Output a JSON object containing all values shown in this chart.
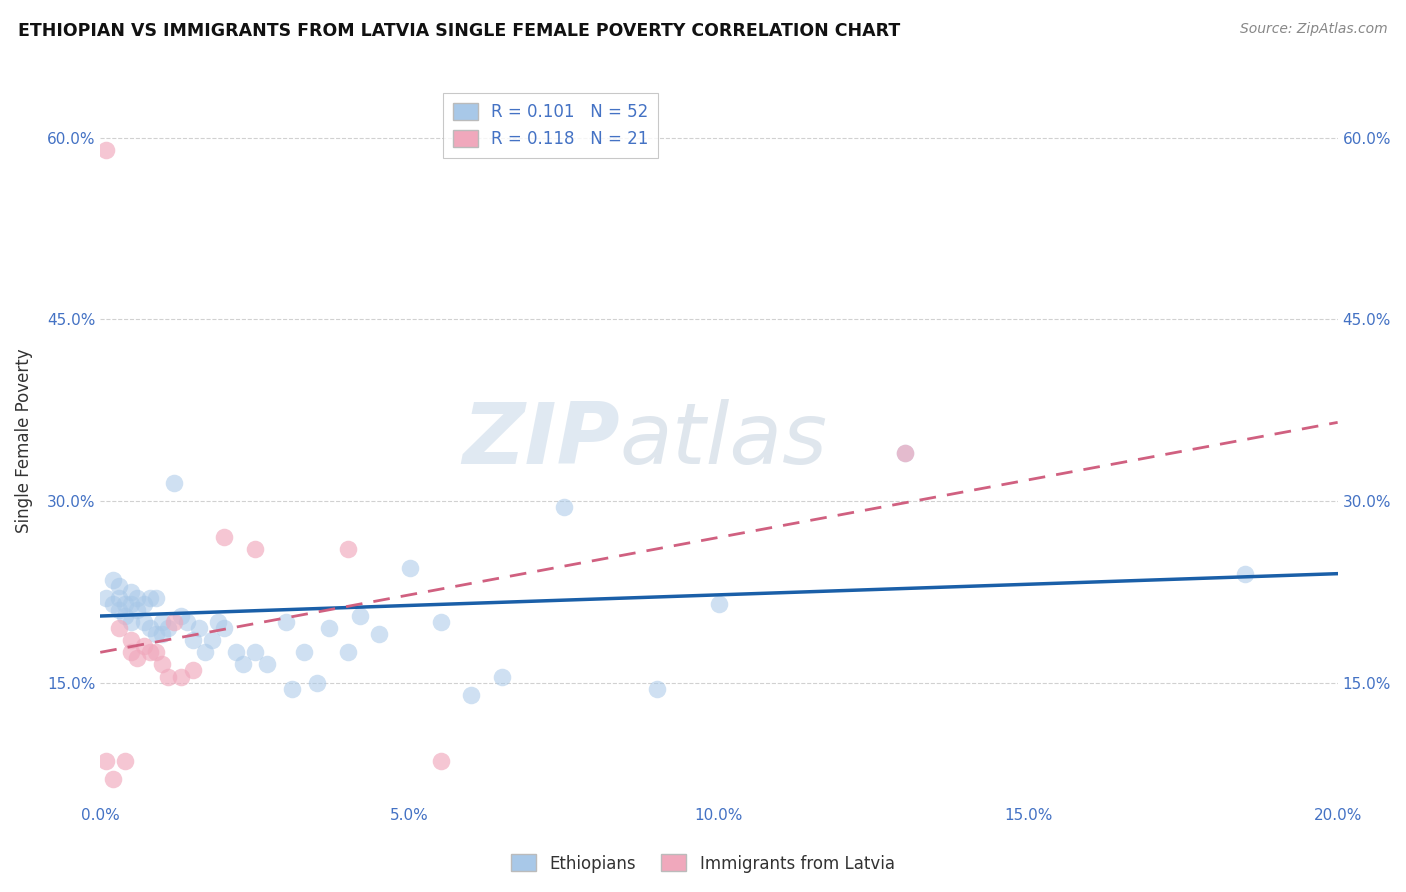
{
  "title": "ETHIOPIAN VS IMMIGRANTS FROM LATVIA SINGLE FEMALE POVERTY CORRELATION CHART",
  "source": "Source: ZipAtlas.com",
  "ylabel": "Single Female Poverty",
  "xlim": [
    0.0,
    0.2
  ],
  "ylim": [
    0.05,
    0.65
  ],
  "xticks": [
    0.0,
    0.05,
    0.1,
    0.15,
    0.2
  ],
  "yticks": [
    0.15,
    0.3,
    0.45,
    0.6
  ],
  "ytick_labels": [
    "15.0%",
    "30.0%",
    "45.0%",
    "60.0%"
  ],
  "xtick_labels": [
    "0.0%",
    "5.0%",
    "10.0%",
    "15.0%",
    "20.0%"
  ],
  "watermark_zip": "ZIP",
  "watermark_atlas": "atlas",
  "legend_r1": "R = 0.101   N = 52",
  "legend_r2": "R = 0.118   N = 21",
  "legend_label1": "Ethiopians",
  "legend_label2": "Immigrants from Latvia",
  "blue_color": "#a8c8e8",
  "pink_color": "#f0a8bc",
  "blue_line_color": "#1a5fa8",
  "pink_line_color": "#d06080",
  "ethiopians_x": [
    0.001,
    0.002,
    0.002,
    0.003,
    0.003,
    0.003,
    0.004,
    0.004,
    0.005,
    0.005,
    0.005,
    0.006,
    0.006,
    0.007,
    0.007,
    0.008,
    0.008,
    0.009,
    0.009,
    0.01,
    0.01,
    0.011,
    0.012,
    0.013,
    0.014,
    0.015,
    0.016,
    0.017,
    0.018,
    0.019,
    0.02,
    0.022,
    0.023,
    0.025,
    0.027,
    0.03,
    0.031,
    0.033,
    0.035,
    0.037,
    0.04,
    0.042,
    0.045,
    0.05,
    0.055,
    0.06,
    0.065,
    0.075,
    0.09,
    0.1,
    0.13,
    0.185
  ],
  "ethiopians_y": [
    0.22,
    0.235,
    0.215,
    0.23,
    0.22,
    0.21,
    0.215,
    0.205,
    0.225,
    0.215,
    0.2,
    0.21,
    0.22,
    0.215,
    0.2,
    0.22,
    0.195,
    0.22,
    0.19,
    0.2,
    0.19,
    0.195,
    0.315,
    0.205,
    0.2,
    0.185,
    0.195,
    0.175,
    0.185,
    0.2,
    0.195,
    0.175,
    0.165,
    0.175,
    0.165,
    0.2,
    0.145,
    0.175,
    0.15,
    0.195,
    0.175,
    0.205,
    0.19,
    0.245,
    0.2,
    0.14,
    0.155,
    0.295,
    0.145,
    0.215,
    0.34,
    0.24
  ],
  "latvia_x": [
    0.001,
    0.001,
    0.002,
    0.003,
    0.004,
    0.005,
    0.005,
    0.006,
    0.007,
    0.008,
    0.009,
    0.01,
    0.011,
    0.012,
    0.013,
    0.015,
    0.02,
    0.025,
    0.04,
    0.055,
    0.13
  ],
  "latvia_y": [
    0.59,
    0.085,
    0.07,
    0.195,
    0.085,
    0.175,
    0.185,
    0.17,
    0.18,
    0.175,
    0.175,
    0.165,
    0.155,
    0.2,
    0.155,
    0.16,
    0.27,
    0.26,
    0.26,
    0.085,
    0.34
  ]
}
